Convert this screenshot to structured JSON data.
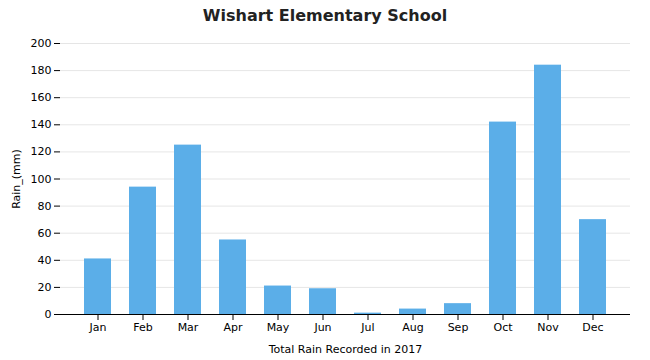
{
  "chart_data": {
    "type": "bar",
    "title": "Wishart Elementary School",
    "xlabel": "Total Rain Recorded in 2017",
    "ylabel": "Rain_(mm)",
    "categories": [
      "Jan",
      "Feb",
      "Mar",
      "Apr",
      "May",
      "Jun",
      "Jul",
      "Aug",
      "Sep",
      "Oct",
      "Nov",
      "Dec"
    ],
    "values": [
      41,
      94,
      125,
      55,
      21,
      19,
      1,
      4,
      8,
      142,
      184,
      70
    ],
    "color": "#5BAEE8",
    "ylim": [
      0,
      200
    ],
    "yticks": [
      0,
      20,
      40,
      60,
      80,
      100,
      120,
      140,
      160,
      180,
      200
    ],
    "grid": true
  }
}
